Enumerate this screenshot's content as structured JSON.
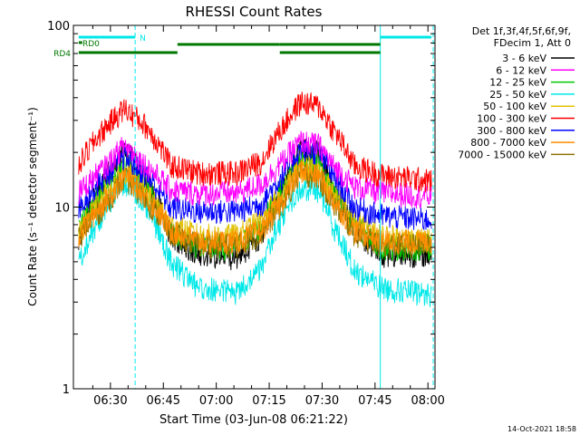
{
  "chart_data": {
    "type": "line",
    "title": "RHESSI Count Rates",
    "xlabel": "Start Time (03-Jun-08 06:21:22)",
    "ylabel": "Count Rate (s⁻¹ detector segment⁻¹)",
    "yscale": "log",
    "ylim": [
      1,
      100
    ],
    "xlim": [
      "06:21",
      "08:02"
    ],
    "x_ticks": [
      "06:30",
      "06:45",
      "07:00",
      "07:15",
      "07:30",
      "07:45",
      "08:00"
    ],
    "y_ticks": [
      "1",
      "10",
      "100"
    ],
    "grid": false,
    "legend": {
      "placement": "right",
      "header": [
        "Det 1f,3f,4f,5f,6f,9f,",
        "FDecim 1, Att 0"
      ],
      "entries": [
        {
          "name": "3 - 6 keV",
          "color": "#000000"
        },
        {
          "name": "6 - 12 keV",
          "color": "#ff00ff"
        },
        {
          "name": "12 - 25 keV",
          "color": "#00c800"
        },
        {
          "name": "25 - 50 keV",
          "color": "#00e8e8"
        },
        {
          "name": "50 - 100 keV",
          "color": "#e0c000"
        },
        {
          "name": "100 - 300 keV",
          "color": "#ff0000"
        },
        {
          "name": "300 - 800 keV",
          "color": "#0000ff"
        },
        {
          "name": "800 - 7000 keV",
          "color": "#ff8c00"
        },
        {
          "name": "7000 - 15000 keV",
          "color": "#8b7300"
        }
      ]
    },
    "series": [
      {
        "name": "3 - 6 keV",
        "color": "#000000",
        "points": [
          [
            0,
            6.5
          ],
          [
            8,
            15
          ],
          [
            13,
            21
          ],
          [
            19,
            14
          ],
          [
            26,
            7
          ],
          [
            34,
            5.5
          ],
          [
            45,
            5.3
          ],
          [
            52,
            7
          ],
          [
            58,
            13
          ],
          [
            63,
            21
          ],
          [
            68,
            20
          ],
          [
            72,
            13
          ],
          [
            78,
            7.5
          ],
          [
            86,
            5.5
          ],
          [
            100,
            5.5
          ]
        ]
      },
      {
        "name": "6 - 12 keV",
        "color": "#ff00ff",
        "points": [
          [
            0,
            12
          ],
          [
            8,
            17
          ],
          [
            13,
            22
          ],
          [
            19,
            17
          ],
          [
            26,
            12.5
          ],
          [
            34,
            12
          ],
          [
            45,
            12
          ],
          [
            52,
            13.5
          ],
          [
            58,
            18
          ],
          [
            63,
            23
          ],
          [
            68,
            22
          ],
          [
            72,
            17
          ],
          [
            78,
            13
          ],
          [
            86,
            12
          ],
          [
            100,
            11.5
          ]
        ]
      },
      {
        "name": "12 - 25 keV",
        "color": "#00c800",
        "points": [
          [
            0,
            8
          ],
          [
            8,
            13
          ],
          [
            13,
            17
          ],
          [
            19,
            13
          ],
          [
            26,
            7.5
          ],
          [
            34,
            6
          ],
          [
            45,
            6
          ],
          [
            52,
            8
          ],
          [
            58,
            13
          ],
          [
            63,
            18
          ],
          [
            68,
            17
          ],
          [
            72,
            12
          ],
          [
            78,
            8
          ],
          [
            86,
            6
          ],
          [
            100,
            6
          ]
        ]
      },
      {
        "name": "25 - 50 keV",
        "color": "#00e8e8",
        "points": [
          [
            0,
            5
          ],
          [
            8,
            10
          ],
          [
            13,
            14
          ],
          [
            19,
            10
          ],
          [
            26,
            5
          ],
          [
            34,
            3.6
          ],
          [
            45,
            3.4
          ],
          [
            52,
            4.6
          ],
          [
            58,
            9
          ],
          [
            63,
            13
          ],
          [
            68,
            12.5
          ],
          [
            72,
            8
          ],
          [
            78,
            4.5
          ],
          [
            86,
            3.6
          ],
          [
            100,
            3.3
          ]
        ]
      },
      {
        "name": "50 - 100 keV",
        "color": "#e0c000",
        "points": [
          [
            0,
            7
          ],
          [
            8,
            12
          ],
          [
            13,
            16
          ],
          [
            19,
            12
          ],
          [
            26,
            8
          ],
          [
            34,
            7
          ],
          [
            45,
            7
          ],
          [
            52,
            8.5
          ],
          [
            58,
            12
          ],
          [
            63,
            17
          ],
          [
            68,
            16
          ],
          [
            72,
            12
          ],
          [
            78,
            8.5
          ],
          [
            86,
            7
          ],
          [
            100,
            6.5
          ]
        ]
      },
      {
        "name": "100 - 300 keV",
        "color": "#ff0000",
        "points": [
          [
            0,
            17
          ],
          [
            8,
            28
          ],
          [
            13,
            35
          ],
          [
            19,
            28
          ],
          [
            26,
            17
          ],
          [
            34,
            15.5
          ],
          [
            45,
            15.5
          ],
          [
            52,
            18
          ],
          [
            58,
            28
          ],
          [
            63,
            38
          ],
          [
            68,
            36
          ],
          [
            72,
            27
          ],
          [
            78,
            17
          ],
          [
            86,
            15
          ],
          [
            100,
            14
          ]
        ]
      },
      {
        "name": "300 - 800 keV",
        "color": "#0000ff",
        "points": [
          [
            0,
            10
          ],
          [
            8,
            15
          ],
          [
            13,
            19
          ],
          [
            19,
            15
          ],
          [
            26,
            10
          ],
          [
            34,
            9.5
          ],
          [
            45,
            9.5
          ],
          [
            52,
            10.5
          ],
          [
            58,
            15
          ],
          [
            63,
            21
          ],
          [
            68,
            20
          ],
          [
            72,
            15
          ],
          [
            78,
            10
          ],
          [
            86,
            9
          ],
          [
            100,
            8.5
          ]
        ]
      },
      {
        "name": "800 - 7000 keV",
        "color": "#ff8c00",
        "points": [
          [
            0,
            7
          ],
          [
            8,
            11
          ],
          [
            13,
            15
          ],
          [
            19,
            11.5
          ],
          [
            26,
            7.5
          ],
          [
            34,
            6.5
          ],
          [
            45,
            6.5
          ],
          [
            52,
            7.5
          ],
          [
            58,
            11
          ],
          [
            63,
            16
          ],
          [
            68,
            15
          ],
          [
            72,
            11
          ],
          [
            78,
            7.5
          ],
          [
            86,
            6.5
          ],
          [
            100,
            6.5
          ]
        ]
      },
      {
        "name": "7000 - 15000 keV",
        "color": "#8b7300",
        "points": [
          [
            0,
            6.8
          ],
          [
            8,
            10.5
          ],
          [
            13,
            14.5
          ],
          [
            19,
            11
          ],
          [
            26,
            7.2
          ],
          [
            34,
            6.2
          ],
          [
            45,
            6.2
          ],
          [
            52,
            7.2
          ],
          [
            58,
            10.5
          ],
          [
            63,
            15.5
          ],
          [
            68,
            14.5
          ],
          [
            72,
            10.5
          ],
          [
            78,
            7.2
          ],
          [
            86,
            6.2
          ],
          [
            100,
            6.2
          ]
        ]
      }
    ],
    "flag_bars": [
      {
        "label": "N",
        "color": "#00e8e8",
        "segments": [
          [
            0,
            16
          ],
          [
            85.5,
            100
          ]
        ]
      },
      {
        "label": "RD0",
        "color": "#007800",
        "segments": [
          [
            0,
            1
          ]
        ]
      },
      {
        "label": "",
        "color": "#007800",
        "segments": [
          [
            28,
            57
          ],
          [
            57,
            85.5
          ]
        ]
      },
      {
        "label": "RD4",
        "color": "#007800",
        "segments": [
          [
            0,
            28
          ],
          [
            57,
            85.5
          ]
        ]
      }
    ],
    "vertical_markers": [
      {
        "x": 16,
        "style": "dashed",
        "color": "#00e8e8"
      },
      {
        "x": 85.5,
        "style": "solid",
        "color": "#00e8e8"
      },
      {
        "x": 100.5,
        "style": "dashed",
        "color": "#00e8e8"
      }
    ]
  },
  "footer": {
    "timestamp": "14-Oct-2021 18:58"
  }
}
